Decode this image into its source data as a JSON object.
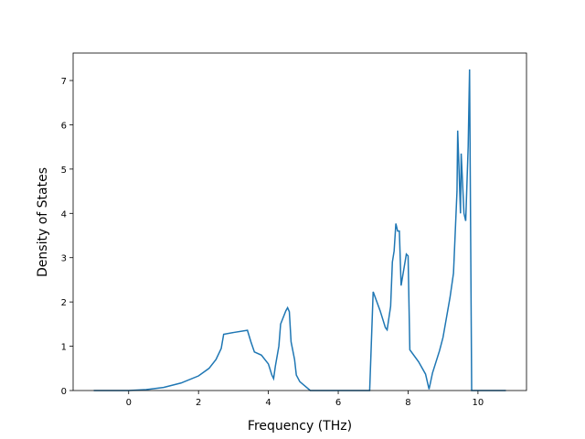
{
  "chart_data": {
    "type": "line",
    "x_label": "Frequency (THz)",
    "y_label": "Density of States",
    "x": [
      -1.0,
      0,
      0.5,
      1,
      1.5,
      2,
      2.3,
      2.5,
      2.65,
      2.72,
      3.0,
      3.4,
      3.5,
      3.6,
      3.8,
      4.0,
      4.1,
      4.15,
      4.2,
      4.3,
      4.35,
      4.5,
      4.55,
      4.6,
      4.65,
      4.75,
      4.8,
      4.9,
      5.2,
      6.9,
      7.0,
      7.2,
      7.35,
      7.4,
      7.5,
      7.55,
      7.6,
      7.65,
      7.7,
      7.75,
      7.8,
      7.95,
      8.0,
      8.05,
      8.3,
      8.5,
      8.6,
      8.7,
      8.9,
      9.0,
      9.2,
      9.3,
      9.4,
      9.42,
      9.5,
      9.52,
      9.6,
      9.65,
      9.72,
      9.76,
      9.82,
      10.8
    ],
    "series": [
      {
        "color": "#1f77b4",
        "values": [
          0,
          0,
          0.02,
          0.07,
          0.17,
          0.33,
          0.5,
          0.7,
          0.95,
          1.27,
          1.31,
          1.36,
          1.1,
          0.87,
          0.8,
          0.6,
          0.35,
          0.27,
          0.55,
          1.0,
          1.5,
          1.8,
          1.87,
          1.78,
          1.1,
          0.7,
          0.35,
          0.2,
          0,
          0,
          2.23,
          1.8,
          1.42,
          1.37,
          1.9,
          2.9,
          3.15,
          3.77,
          3.6,
          3.6,
          2.37,
          3.08,
          3.04,
          0.92,
          0.65,
          0.37,
          0.03,
          0.4,
          0.9,
          1.2,
          2.1,
          2.65,
          4.5,
          5.87,
          4.0,
          5.35,
          4.0,
          3.83,
          5.5,
          7.25,
          0,
          0
        ]
      }
    ],
    "xlim": [
      -1.59,
      11.39
    ],
    "ylim": [
      0,
      7.62
    ],
    "xticks": [
      0,
      2,
      4,
      6,
      8,
      10
    ],
    "yticks": [
      0,
      1,
      2,
      3,
      4,
      5,
      6,
      7
    ]
  }
}
